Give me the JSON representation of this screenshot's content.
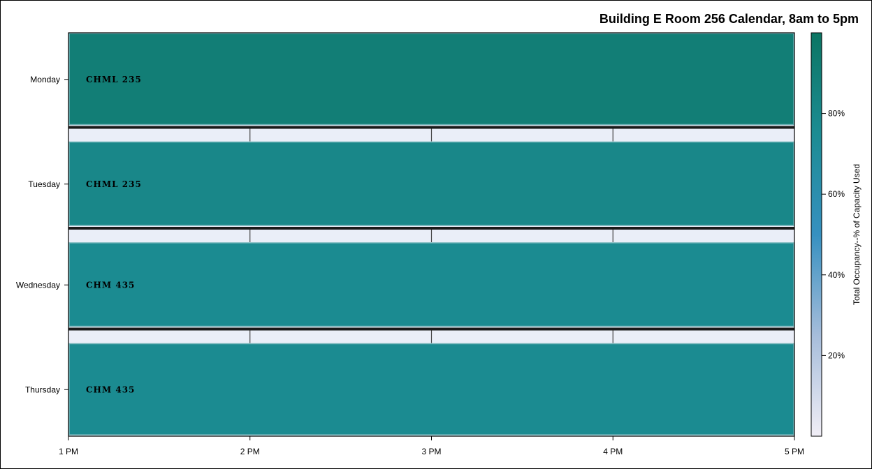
{
  "chart_data": {
    "type": "heatmap",
    "title": "Building E Room 256 Calendar, 8am to 5pm",
    "x_ticks": [
      "1 PM",
      "2 PM",
      "3 PM",
      "4 PM",
      "5 PM"
    ],
    "x_range_hours": [
      13,
      17
    ],
    "days": [
      "Monday",
      "Tuesday",
      "Wednesday",
      "Thursday"
    ],
    "bookings": [
      {
        "day": "Monday",
        "course": "CHML 235",
        "start_hour": 13,
        "end_hour": 17,
        "occupancy_pct": 90
      },
      {
        "day": "Tuesday",
        "course": "CHML 235",
        "start_hour": 13,
        "end_hour": 17,
        "occupancy_pct": 80
      },
      {
        "day": "Wednesday",
        "course": "CHM 435",
        "start_hour": 13,
        "end_hour": 17,
        "occupancy_pct": 76
      },
      {
        "day": "Thursday",
        "course": "CHM 435",
        "start_hour": 13,
        "end_hour": 17,
        "occupancy_pct": 76
      }
    ],
    "colorbar": {
      "label": "Total Occupancy--% of Capacity Used",
      "ticks": [
        "20%",
        "40%",
        "60%",
        "80%"
      ],
      "tick_values": [
        20,
        40,
        60,
        80
      ],
      "range_pct": [
        0,
        100
      ],
      "colors": [
        "#f1eef6",
        "#a6bddb",
        "#3690c0",
        "#1c8c93",
        "#0b7563"
      ]
    },
    "colors": {
      "separator_fill": "#eaeef8",
      "frame": "#000000"
    }
  }
}
